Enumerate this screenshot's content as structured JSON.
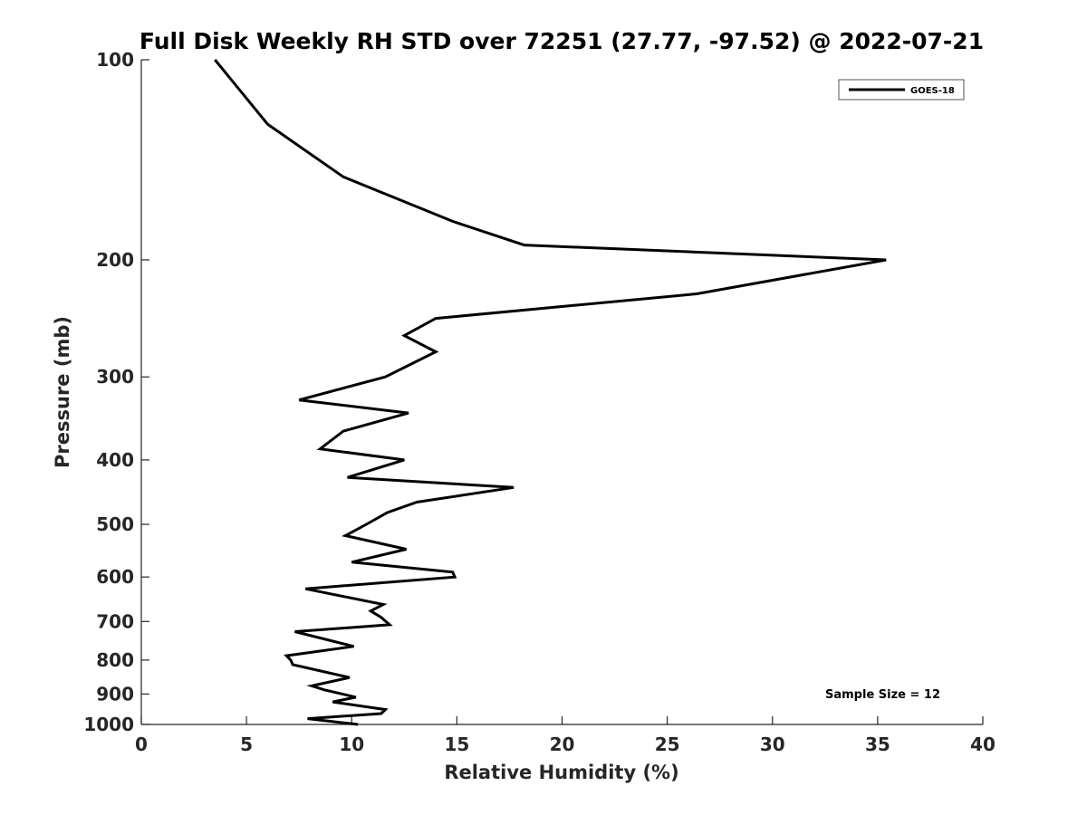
{
  "chart_data": {
    "type": "line",
    "title": "Full Disk Weekly RH STD over 72251 (27.77, -97.52) @ 2022-07-21",
    "xlabel": "Relative Humidity (%)",
    "ylabel": "Pressure (mb)",
    "xlim": [
      0,
      40
    ],
    "ylim": [
      100,
      1000
    ],
    "y_scale": "log",
    "y_reversed": true,
    "grid": false,
    "legend_position": "top-right",
    "x_ticks": [
      0,
      5,
      10,
      15,
      20,
      25,
      30,
      35,
      40
    ],
    "x_tick_labels": [
      "0",
      "5",
      "10",
      "15",
      "20",
      "25",
      "30",
      "35",
      "40"
    ],
    "y_ticks": [
      100,
      200,
      300,
      400,
      500,
      600,
      700,
      800,
      900,
      1000
    ],
    "y_tick_labels": [
      "100",
      "200",
      "300",
      "400",
      "500",
      "600",
      "700",
      "800",
      "900",
      "1000"
    ],
    "series": [
      {
        "name": "GOES-18",
        "color": "#000000",
        "x": [
          3.5,
          6.0,
          9.6,
          14.8,
          18.2,
          35.4,
          26.4,
          14.0,
          12.5,
          14.0,
          11.6,
          7.5,
          12.7,
          9.6,
          8.5,
          12.5,
          9.8,
          17.7,
          13.1,
          11.7,
          10.7,
          9.7,
          12.6,
          10.0,
          14.8,
          14.9,
          7.8,
          11.5,
          10.9,
          11.4,
          11.8,
          7.3,
          10.1,
          6.9,
          7.1,
          7.2,
          9.9,
          8.1,
          8.7,
          10.2,
          9.1,
          11.6,
          11.4,
          7.9,
          10.3
        ],
        "y": [
          100,
          125,
          150,
          175,
          190,
          200,
          225,
          245,
          260,
          275,
          300,
          325,
          340,
          362,
          385,
          400,
          425,
          440,
          463,
          480,
          500,
          520,
          545,
          570,
          590,
          600,
          625,
          660,
          675,
          690,
          708,
          725,
          763,
          788,
          800,
          813,
          850,
          875,
          887,
          910,
          925,
          950,
          963,
          980,
          1000
        ]
      }
    ],
    "annotation": "Sample Size = 12"
  }
}
